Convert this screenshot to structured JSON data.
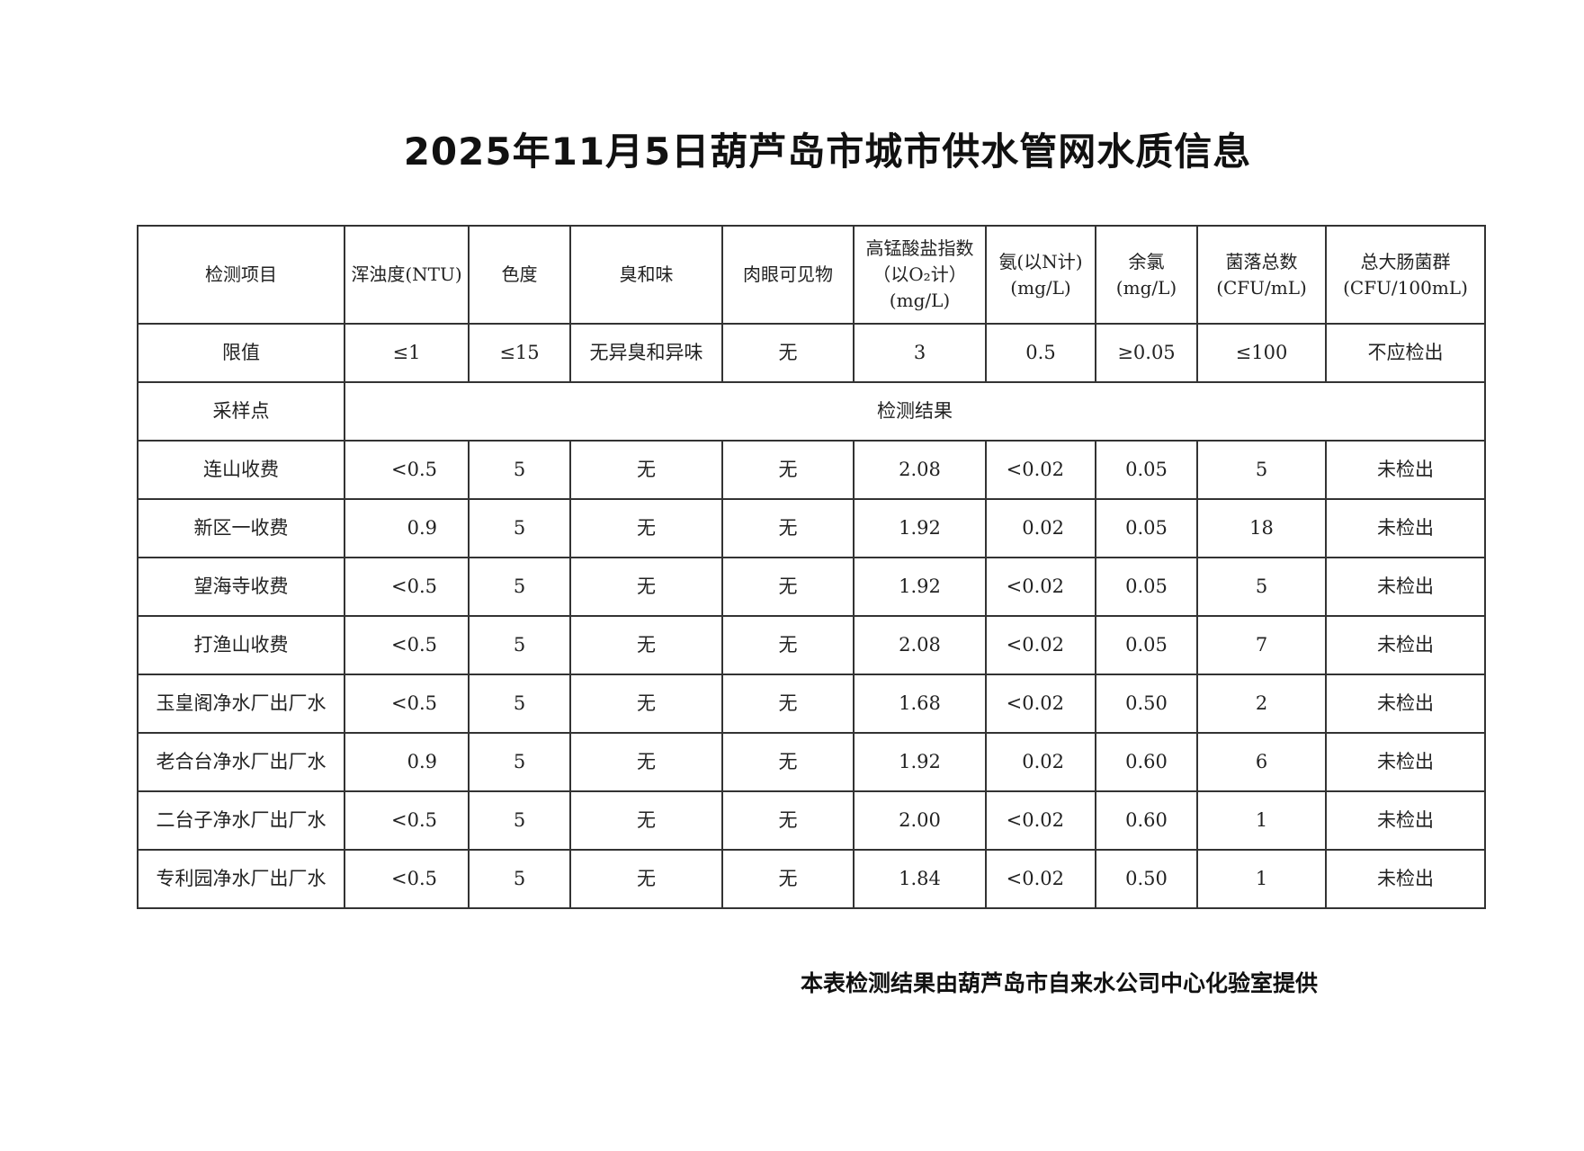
{
  "title": "2025年11月5日葫芦岛市城市供水管网水质信息",
  "table": {
    "headers": [
      "检测项目",
      "浑浊度(NTU)",
      "色度",
      "臭和味",
      "肉眼可见物",
      "高锰酸盐指数（以O₂计）(mg/L)",
      "氨(以N计)(mg/L)",
      "余氯(mg/L)",
      "菌落总数(CFU/mL)",
      "总大肠菌群(CFU/100mL)"
    ],
    "limits_label": "限值",
    "limits": [
      "≤1",
      "≤15",
      "无异臭和异味",
      "无",
      "3",
      "0.5",
      "≥0.05",
      "≤100",
      "不应检出"
    ],
    "sampling_label": "采样点",
    "results_label": "检测结果",
    "rows": [
      {
        "site": "连山收费",
        "values": [
          "<0.5",
          "5",
          "无",
          "无",
          "2.08",
          "<0.02",
          "0.05",
          "5",
          "未检出"
        ]
      },
      {
        "site": "新区一收费",
        "values": [
          "0.9",
          "5",
          "无",
          "无",
          "1.92",
          "0.02",
          "0.05",
          "18",
          "未检出"
        ]
      },
      {
        "site": "望海寺收费",
        "values": [
          "<0.5",
          "5",
          "无",
          "无",
          "1.92",
          "<0.02",
          "0.05",
          "5",
          "未检出"
        ]
      },
      {
        "site": "打渔山收费",
        "values": [
          "<0.5",
          "5",
          "无",
          "无",
          "2.08",
          "<0.02",
          "0.05",
          "7",
          "未检出"
        ]
      },
      {
        "site": "玉皇阁净水厂出厂水",
        "values": [
          "<0.5",
          "5",
          "无",
          "无",
          "1.68",
          "<0.02",
          "0.50",
          "2",
          "未检出"
        ]
      },
      {
        "site": "老合台净水厂出厂水",
        "values": [
          "0.9",
          "5",
          "无",
          "无",
          "1.92",
          "0.02",
          "0.60",
          "6",
          "未检出"
        ]
      },
      {
        "site": "二台子净水厂出厂水",
        "values": [
          "<0.5",
          "5",
          "无",
          "无",
          "2.00",
          "<0.02",
          "0.60",
          "1",
          "未检出"
        ]
      },
      {
        "site": "专利园净水厂出厂水",
        "values": [
          "<0.5",
          "5",
          "无",
          "无",
          "1.84",
          "<0.02",
          "0.50",
          "1",
          "未检出"
        ]
      }
    ]
  },
  "footer": "本表检测结果由葫芦岛市自来水公司中心化验室提供"
}
